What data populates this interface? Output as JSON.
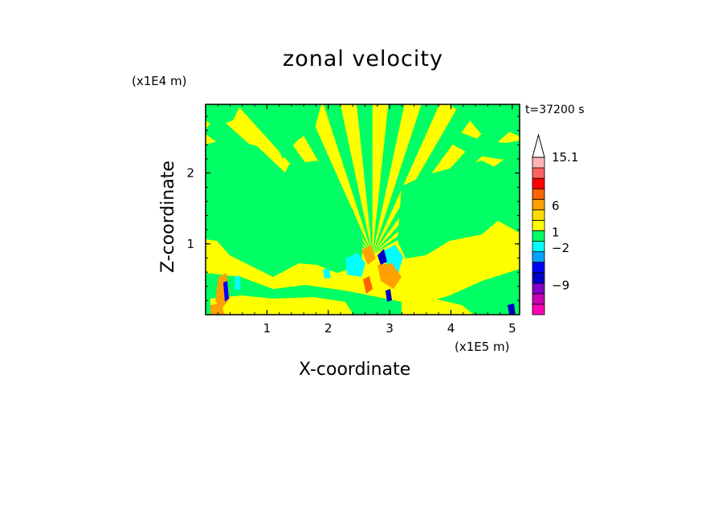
{
  "chart_data": {
    "type": "heatmap",
    "title": "zonal velocity",
    "xlabel": "X-coordinate",
    "ylabel": "Z-coordinate",
    "x_unit": "(x1E5 m)",
    "z_unit": "(x1E4 m)",
    "time_label": "t=37200 s",
    "x_ticks": [
      1,
      2,
      3,
      4,
      5
    ],
    "z_ticks": [
      1,
      2
    ],
    "xlim": [
      0,
      5.12
    ],
    "zlim": [
      0,
      2.97
    ],
    "colorbar": {
      "levels": [
        {
          "color": "#ff00b4"
        },
        {
          "color": "#c800b4"
        },
        {
          "color": "#8200c8"
        },
        {
          "color": "#0000c8"
        },
        {
          "color": "#0000ff"
        },
        {
          "color": "#00a0ff"
        },
        {
          "color": "#00ffff"
        },
        {
          "color": "#00ff64"
        },
        {
          "color": "#ffff00"
        },
        {
          "color": "#ffdc00"
        },
        {
          "color": "#ffa000"
        },
        {
          "color": "#ff6400"
        },
        {
          "color": "#ff0000"
        },
        {
          "color": "#ff6464"
        },
        {
          "color": "#ffb4b4"
        }
      ],
      "labels": [
        "15.1",
        "6",
        "1",
        "−2",
        "−9"
      ],
      "label_values": [
        15.1,
        6,
        1,
        -2,
        -9
      ]
    },
    "field_colors": {
      "dominant_positive": "#ffff00",
      "dominant_negative": "#00ff64",
      "strong_positive": "#ff8000",
      "strong_negative": "#0000c8"
    }
  }
}
